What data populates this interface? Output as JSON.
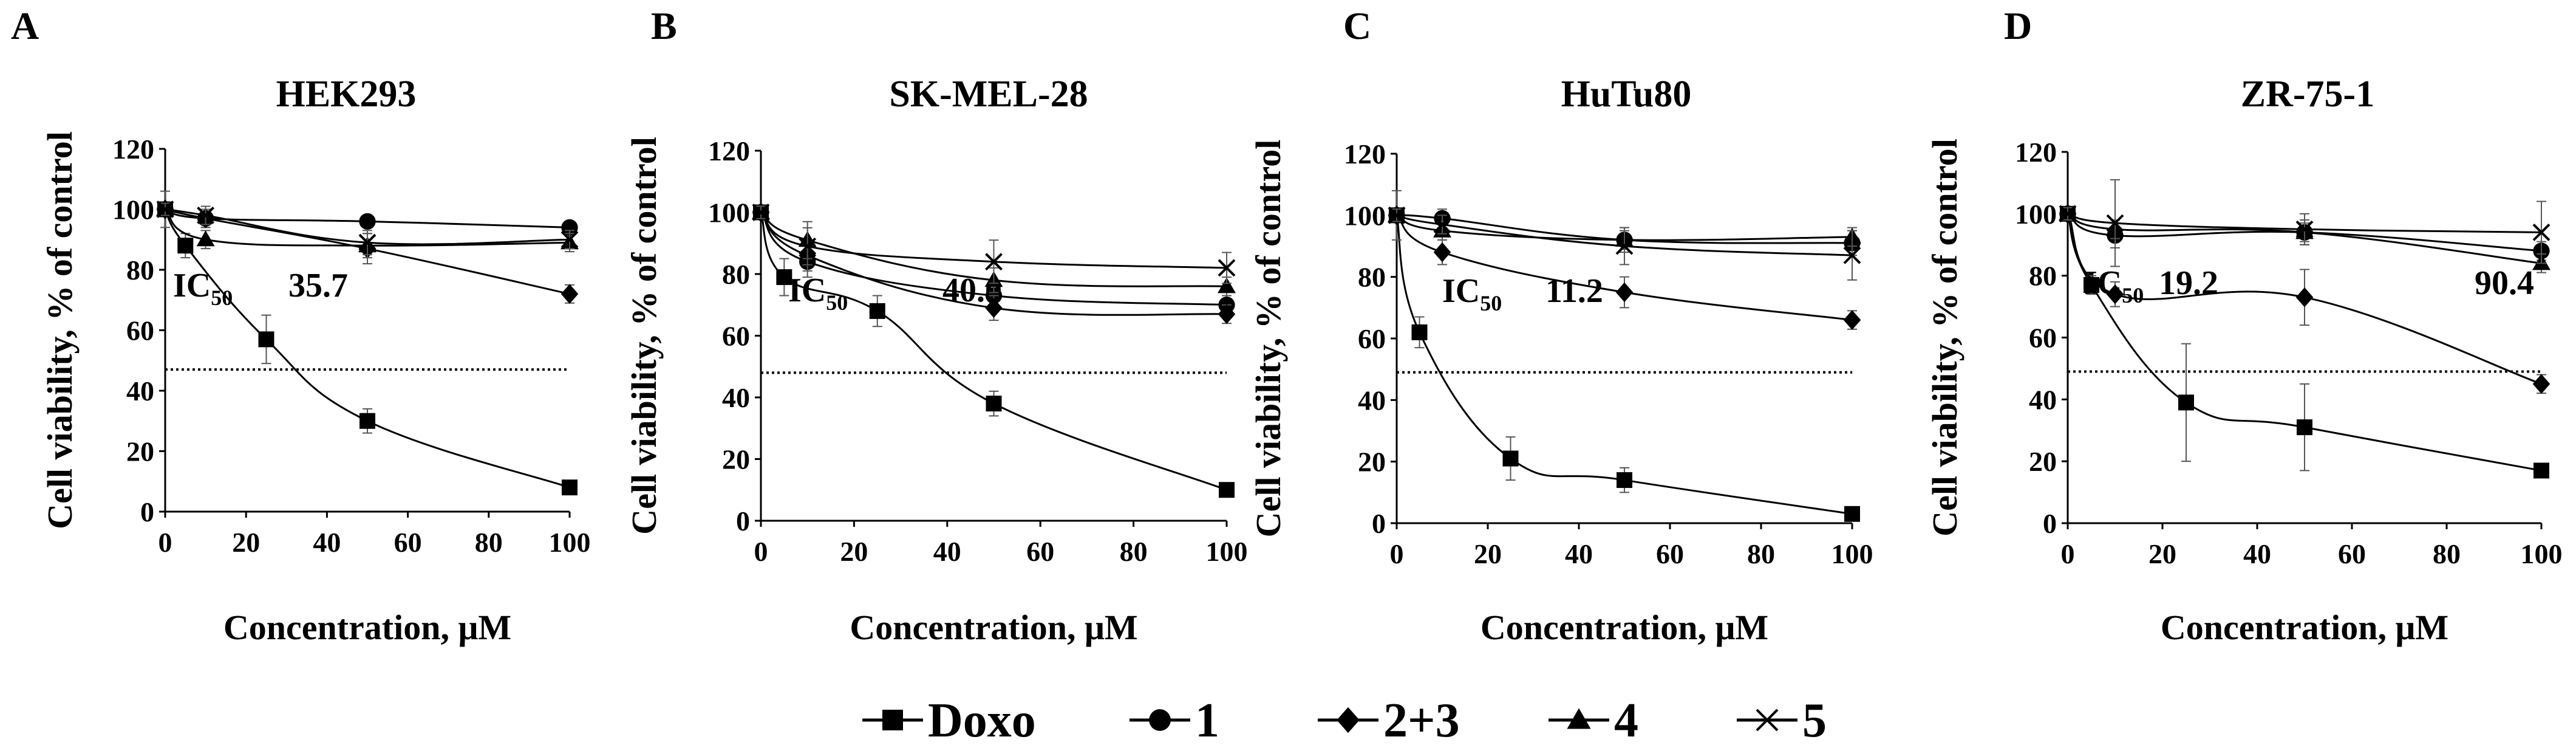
{
  "legend": [
    {
      "name": "Doxo",
      "marker": "square"
    },
    {
      "name": "1",
      "marker": "circle"
    },
    {
      "name": "2+3",
      "marker": "diamond"
    },
    {
      "name": "4",
      "marker": "triangle"
    },
    {
      "name": "5",
      "marker": "cross"
    }
  ],
  "ic_prefix": "IC",
  "ic_subscript": "50",
  "chart_data": [
    {
      "type": "line",
      "panel": "A",
      "title": "HEK293",
      "xlabel": "Concentration, μM",
      "ylabel": "Cell viability, % of control",
      "xlim": [
        0,
        100
      ],
      "ylim": [
        0,
        120
      ],
      "xticks": [
        0,
        20,
        40,
        60,
        80,
        100
      ],
      "yticks": [
        0,
        20,
        40,
        60,
        80,
        100,
        120
      ],
      "threshold": 47,
      "ic50_values": [
        "35.7"
      ],
      "series": [
        {
          "name": "Doxo",
          "x": [
            0,
            5,
            25,
            50,
            100
          ],
          "y": [
            100,
            88,
            57,
            30,
            8
          ],
          "err": [
            6,
            4,
            8,
            4,
            2
          ]
        },
        {
          "name": "1",
          "x": [
            0,
            10,
            50,
            100
          ],
          "y": [
            100,
            97,
            96,
            94
          ],
          "err": [
            2,
            3,
            2,
            2
          ]
        },
        {
          "name": "2+3",
          "x": [
            0,
            10,
            50,
            100
          ],
          "y": [
            100,
            97,
            87,
            72
          ],
          "err": [
            2,
            3,
            5,
            3
          ]
        },
        {
          "name": "4",
          "x": [
            0,
            10,
            50,
            100
          ],
          "y": [
            100,
            90,
            88,
            89
          ],
          "err": [
            2,
            3,
            4,
            3
          ]
        },
        {
          "name": "5",
          "x": [
            0,
            10,
            50,
            100
          ],
          "y": [
            100,
            98,
            89,
            90
          ],
          "err": [
            2,
            3,
            4,
            3
          ]
        }
      ]
    },
    {
      "type": "line",
      "panel": "B",
      "title": "SK-MEL-28",
      "xlabel": "Concentration, μM",
      "ylabel": "Cell viability, % of control",
      "xlim": [
        0,
        100
      ],
      "ylim": [
        0,
        120
      ],
      "xticks": [
        0,
        20,
        40,
        60,
        80,
        100
      ],
      "yticks": [
        0,
        20,
        40,
        60,
        80,
        100,
        120
      ],
      "threshold": 48,
      "ic50_values": [
        "40.0"
      ],
      "series": [
        {
          "name": "Doxo",
          "x": [
            0,
            5,
            25,
            50,
            100
          ],
          "y": [
            100,
            79,
            68,
            38,
            10
          ],
          "err": [
            2,
            6,
            5,
            4,
            2
          ]
        },
        {
          "name": "1",
          "x": [
            0,
            10,
            50,
            100
          ],
          "y": [
            100,
            84,
            73,
            70
          ],
          "err": [
            2,
            5,
            4,
            3
          ]
        },
        {
          "name": "2+3",
          "x": [
            0,
            10,
            50,
            100
          ],
          "y": [
            100,
            86,
            69,
            67
          ],
          "err": [
            2,
            5,
            4,
            3
          ]
        },
        {
          "name": "4",
          "x": [
            0,
            10,
            50,
            100
          ],
          "y": [
            100,
            91,
            78,
            76
          ],
          "err": [
            2,
            6,
            4,
            3
          ]
        },
        {
          "name": "5",
          "x": [
            0,
            10,
            50,
            100
          ],
          "y": [
            100,
            89,
            84,
            82
          ],
          "err": [
            2,
            6,
            7,
            5
          ]
        }
      ]
    },
    {
      "type": "line",
      "panel": "C",
      "title": "HuTu80",
      "xlabel": "Concentration, μM",
      "ylabel": "Cell viability, % of control",
      "xlim": [
        0,
        100
      ],
      "ylim": [
        0,
        120
      ],
      "xticks": [
        0,
        20,
        40,
        60,
        80,
        100
      ],
      "yticks": [
        0,
        20,
        40,
        60,
        80,
        100,
        120
      ],
      "threshold": 49,
      "ic50_values": [
        "11.2"
      ],
      "series": [
        {
          "name": "Doxo",
          "x": [
            0,
            5,
            25,
            50,
            100
          ],
          "y": [
            100,
            62,
            21,
            14,
            3
          ],
          "err": [
            8,
            5,
            7,
            4,
            2
          ]
        },
        {
          "name": "1",
          "x": [
            0,
            10,
            50,
            100
          ],
          "y": [
            100,
            99,
            92,
            91
          ],
          "err": [
            2,
            3,
            4,
            4
          ]
        },
        {
          "name": "2+3",
          "x": [
            0,
            10,
            50,
            100
          ],
          "y": [
            100,
            88,
            75,
            66
          ],
          "err": [
            2,
            4,
            5,
            3
          ]
        },
        {
          "name": "4",
          "x": [
            0,
            10,
            50,
            100
          ],
          "y": [
            100,
            95,
            92,
            93
          ],
          "err": [
            2,
            3,
            3,
            3
          ]
        },
        {
          "name": "5",
          "x": [
            0,
            10,
            50,
            100
          ],
          "y": [
            100,
            97,
            90,
            87
          ],
          "err": [
            2,
            3,
            6,
            8
          ]
        }
      ]
    },
    {
      "type": "line",
      "panel": "D",
      "title": "ZR-75-1",
      "xlabel": "Concentration, μM",
      "ylabel": "Cell viability, % of control",
      "xlim": [
        0,
        100
      ],
      "ylim": [
        0,
        120
      ],
      "xticks": [
        0,
        20,
        40,
        60,
        80,
        100
      ],
      "yticks": [
        0,
        20,
        40,
        60,
        80,
        100,
        120
      ],
      "threshold": 49,
      "ic50_values": [
        "19.2",
        "90.4"
      ],
      "series": [
        {
          "name": "Doxo",
          "x": [
            0,
            5,
            25,
            50,
            100
          ],
          "y": [
            100,
            77,
            39,
            31,
            17
          ],
          "err": [
            2,
            3,
            19,
            14,
            2
          ]
        },
        {
          "name": "1",
          "x": [
            0,
            10,
            50,
            100
          ],
          "y": [
            100,
            93,
            94,
            88
          ],
          "err": [
            2,
            4,
            4,
            3
          ]
        },
        {
          "name": "2+3",
          "x": [
            0,
            10,
            50,
            100
          ],
          "y": [
            100,
            74,
            73,
            45
          ],
          "err": [
            2,
            4,
            9,
            3
          ]
        },
        {
          "name": "4",
          "x": [
            0,
            10,
            50,
            100
          ],
          "y": [
            100,
            95,
            94,
            84
          ],
          "err": [
            2,
            3,
            3,
            3
          ]
        },
        {
          "name": "5",
          "x": [
            0,
            10,
            50,
            100
          ],
          "y": [
            100,
            97,
            95,
            94
          ],
          "err": [
            2,
            14,
            5,
            10
          ]
        }
      ]
    }
  ]
}
